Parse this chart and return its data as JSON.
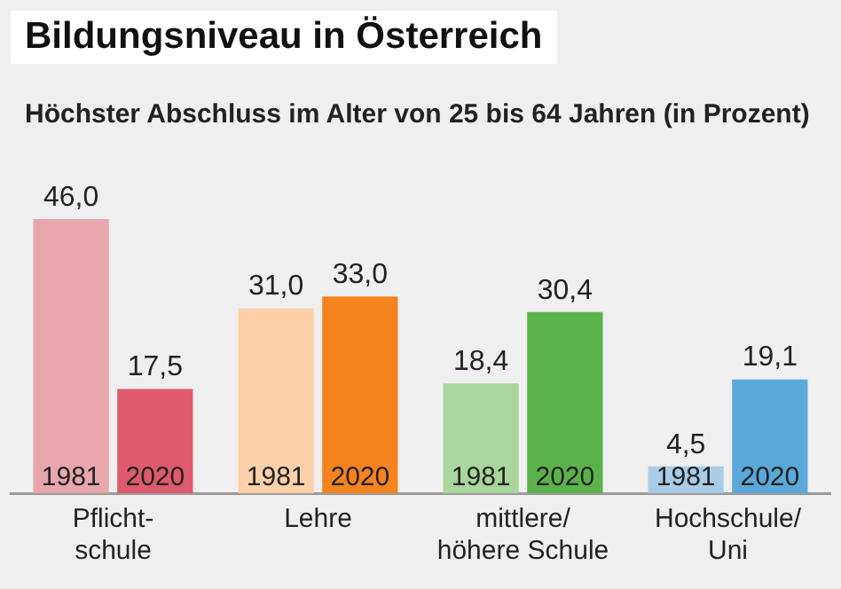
{
  "chart_data": {
    "type": "bar",
    "title": "Bildungsniveau in Österreich",
    "subtitle": "Höchster Abschluss im Alter von 25 bis 64 Jahren (in Prozent)",
    "categories": [
      "Pflicht-\nschule",
      "Lehre",
      "mittlere/\nhöhere Schule",
      "Hochschule/\nUni"
    ],
    "series": [
      {
        "name": "1981",
        "colors": [
          "#e9a6ad",
          "#fcd0a9",
          "#aad59c",
          "#a9cce7"
        ],
        "values": [
          46.0,
          31.0,
          18.4,
          4.5
        ],
        "value_labels": [
          "46,0",
          "31,0",
          "18,4",
          "4,5"
        ]
      },
      {
        "name": "2020",
        "colors": [
          "#df5a6c",
          "#f5831f",
          "#5cb24a",
          "#5aa9da"
        ],
        "values": [
          17.5,
          33.0,
          30.4,
          19.1
        ],
        "value_labels": [
          "17,5",
          "33,0",
          "30,4",
          "19,1"
        ]
      }
    ],
    "legend": false,
    "grid": false
  }
}
